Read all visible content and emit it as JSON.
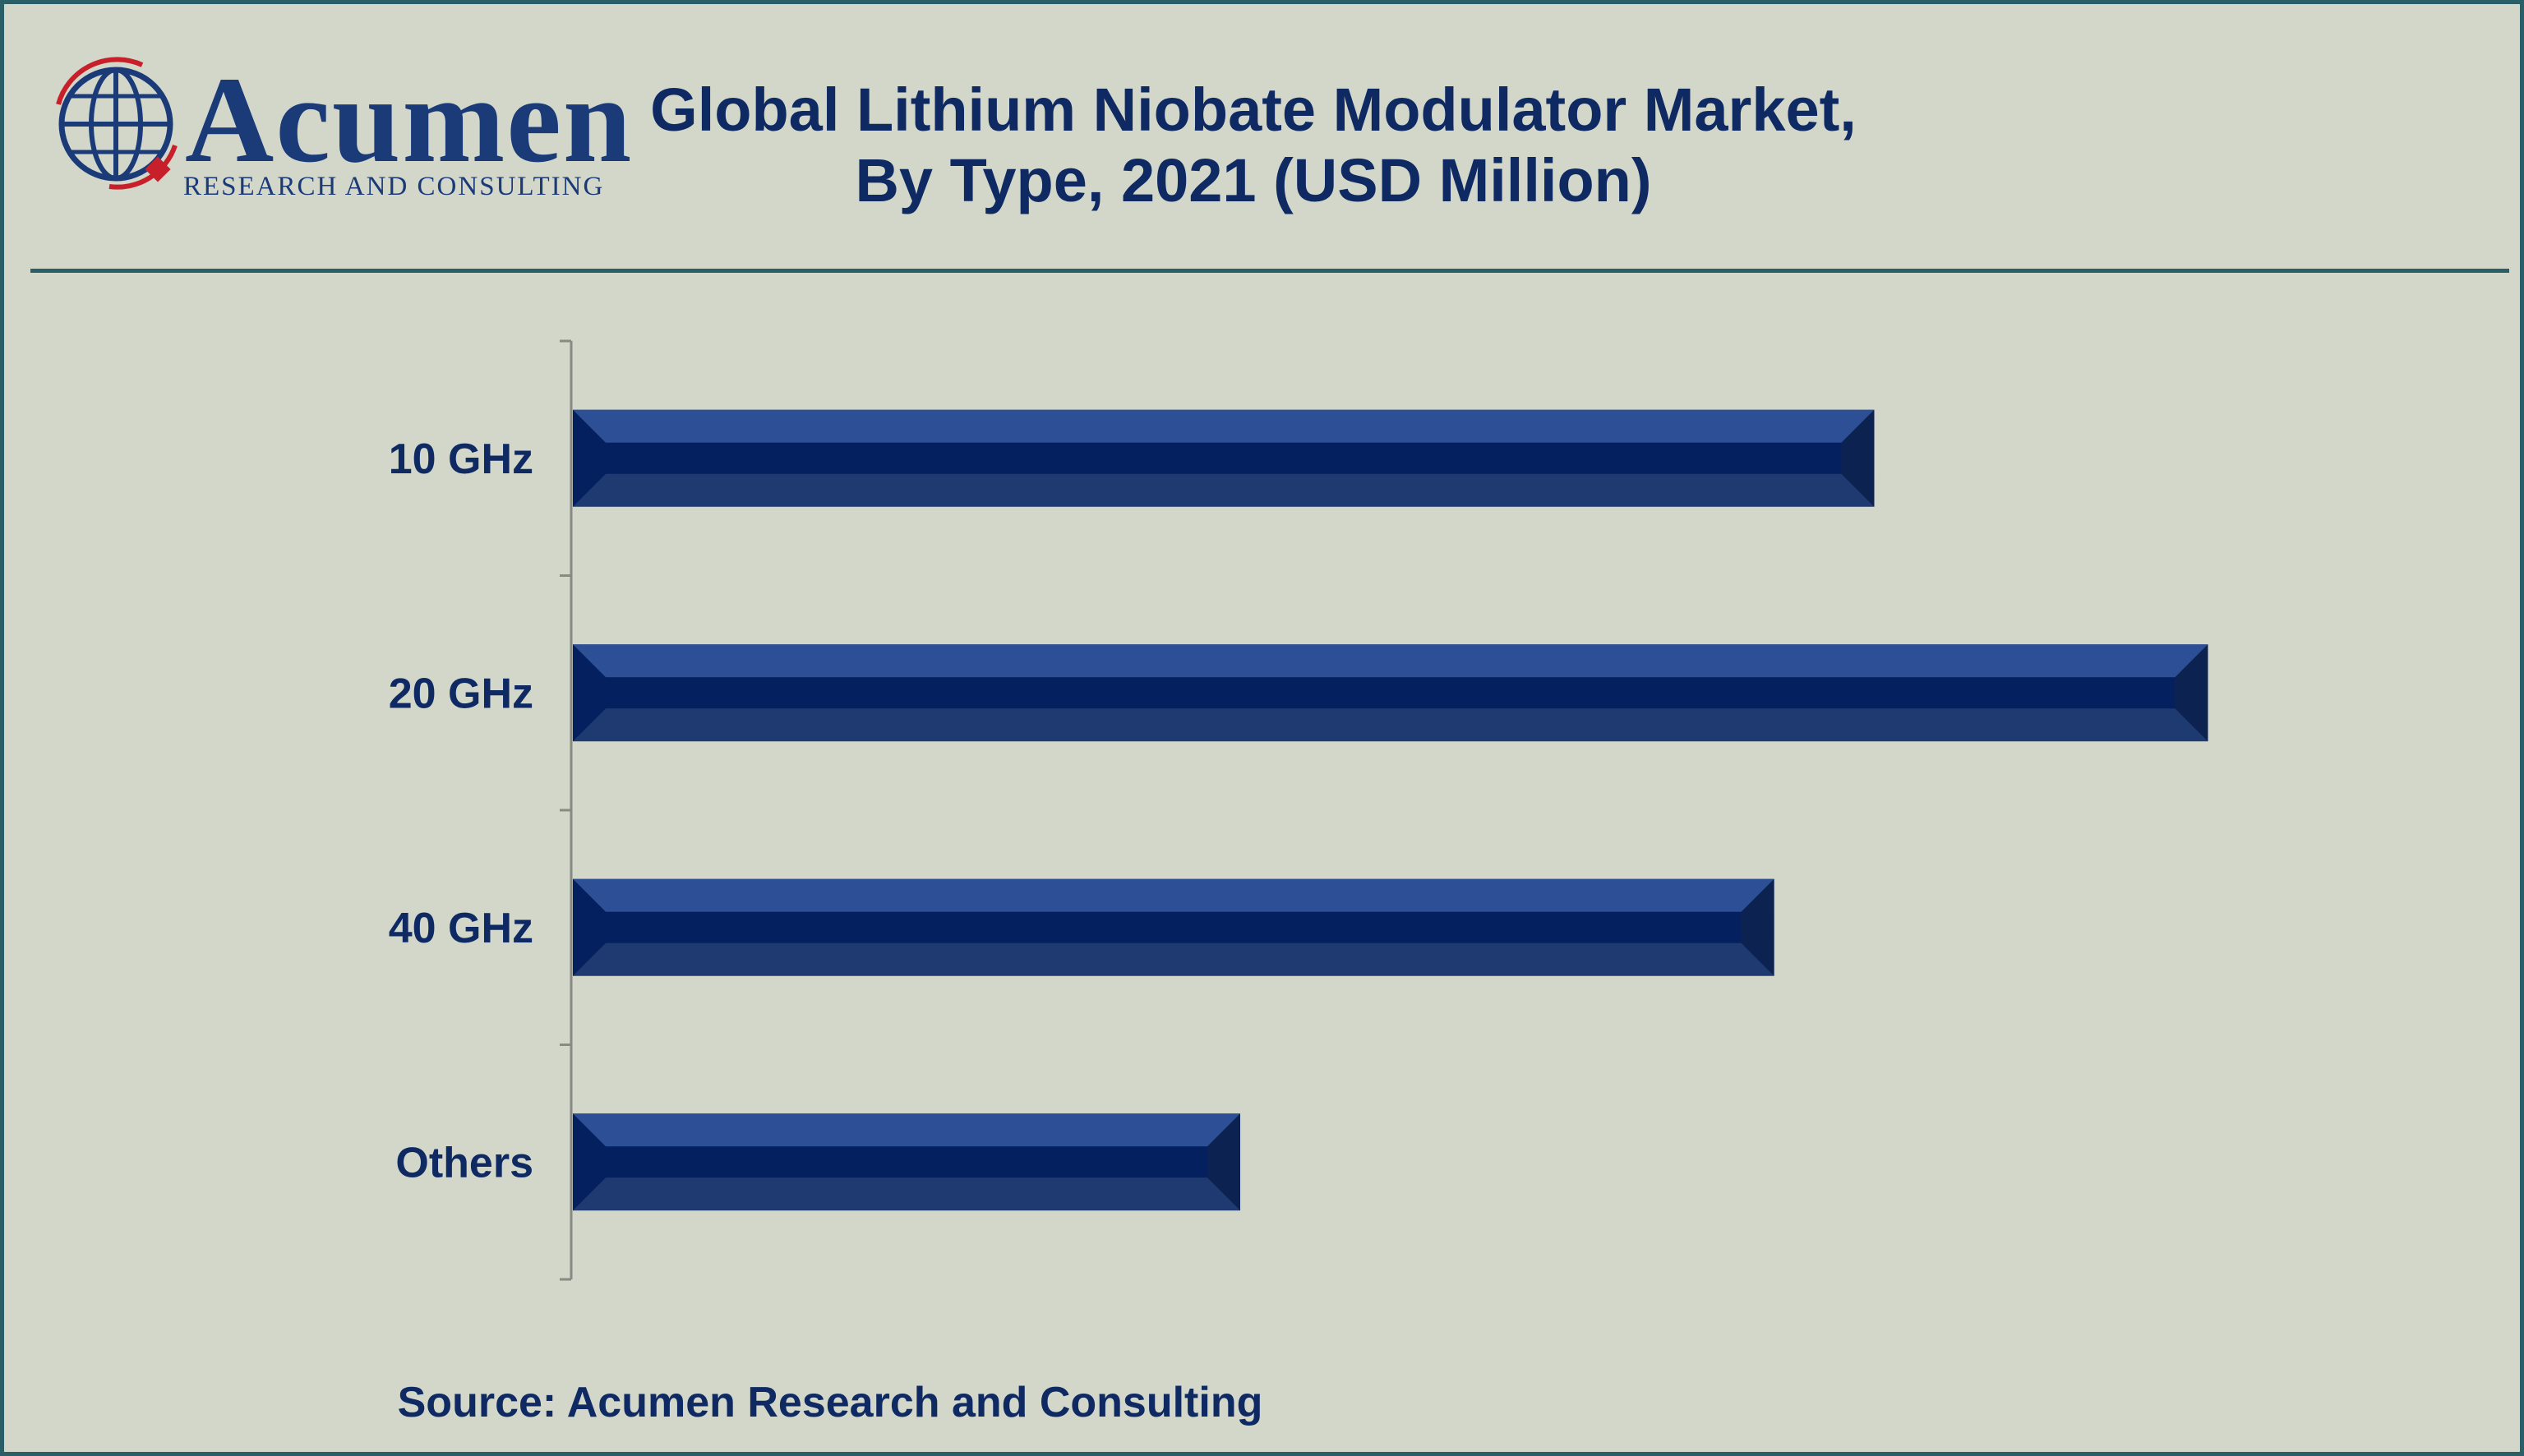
{
  "logo": {
    "name": "Acumen",
    "tagline": "RESEARCH AND CONSULTING"
  },
  "header": {
    "title_line1": "Global Lithium Niobate Modulator Market,",
    "title_line2": "By Type, 2021 (USD Million)"
  },
  "footer": {
    "source": "Source: Acumen Research and Consulting"
  },
  "colors": {
    "background": "#d2d7ca",
    "frame": "#2b5f68",
    "bar_top": "#2d4f96",
    "bar_mid": "#05205f",
    "bar_bottom": "#1f3a70",
    "bar_cap": "#0c2250",
    "text": "#0f2a63"
  },
  "chart_data": {
    "type": "bar",
    "orientation": "horizontal",
    "title": "Global Lithium Niobate Modulator Market, By Type, 2021 (USD Million)",
    "categories": [
      "10 GHz",
      "20 GHz",
      "40 GHz",
      "Others"
    ],
    "values": [
      78,
      98,
      72,
      40
    ],
    "xlim": [
      0,
      100
    ],
    "xlabel": "",
    "ylabel": "",
    "grid": false,
    "legend": "none",
    "value_labels_shown": false
  }
}
